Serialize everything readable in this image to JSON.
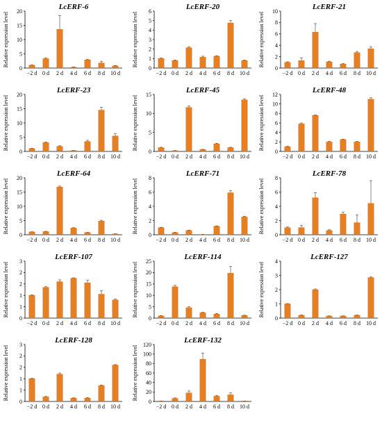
{
  "figure": {
    "ylabel": "Relative expression level",
    "categories": [
      "−2 d",
      "0 d",
      "2 d",
      "4 d",
      "6 d",
      "8 d",
      "10 d"
    ],
    "bar_color": "#e67e22"
  },
  "chart_data": [
    {
      "type": "bar",
      "title": "LcERF-6",
      "ylim": [
        0,
        20
      ],
      "yticks": [
        0,
        5,
        10,
        15,
        20
      ],
      "values": [
        1.0,
        3.3,
        13.6,
        0.3,
        2.9,
        1.8,
        0.8
      ],
      "errors": [
        0.1,
        0.3,
        4.8,
        0.1,
        0.2,
        0.6,
        0.1
      ]
    },
    {
      "type": "bar",
      "title": "LcERF-20",
      "ylim": [
        0,
        6
      ],
      "yticks": [
        0,
        1,
        2,
        3,
        4,
        5,
        6
      ],
      "values": [
        1.0,
        0.8,
        2.15,
        1.15,
        1.25,
        4.75,
        0.8
      ],
      "errors": [
        0.05,
        0.05,
        0.1,
        0.1,
        0.05,
        0.25,
        0.05
      ]
    },
    {
      "type": "bar",
      "title": "LcERF-21",
      "ylim": [
        0,
        10
      ],
      "yticks": [
        0,
        2,
        4,
        6,
        8,
        10
      ],
      "values": [
        1.0,
        1.3,
        6.3,
        1.1,
        0.7,
        2.7,
        3.4
      ],
      "errors": [
        0.1,
        0.5,
        1.5,
        0.1,
        0.1,
        0.2,
        0.3
      ]
    },
    {
      "type": "bar",
      "title": "LcERF-23",
      "ylim": [
        0,
        20
      ],
      "yticks": [
        0,
        5,
        10,
        15,
        20
      ],
      "values": [
        1.0,
        3.1,
        1.8,
        0.3,
        3.5,
        14.5,
        5.4
      ],
      "errors": [
        0.1,
        0.2,
        0.2,
        0.05,
        0.4,
        1.0,
        0.9
      ]
    },
    {
      "type": "bar",
      "title": "LcERF-45",
      "ylim": [
        0,
        15
      ],
      "yticks": [
        0,
        5,
        10,
        15
      ],
      "values": [
        1.0,
        0.2,
        11.6,
        0.5,
        2.0,
        1.0,
        13.6
      ],
      "errors": [
        0.1,
        0.05,
        0.4,
        0.05,
        0.1,
        0.1,
        0.3
      ]
    },
    {
      "type": "bar",
      "title": "LcERF-48",
      "ylim": [
        0,
        12
      ],
      "yticks": [
        0,
        2,
        4,
        6,
        8,
        10,
        12
      ],
      "values": [
        1.0,
        5.8,
        7.6,
        2.0,
        2.5,
        2.0,
        11.0
      ],
      "errors": [
        0.1,
        0.2,
        0.1,
        0.1,
        0.1,
        0.1,
        0.3
      ]
    },
    {
      "type": "bar",
      "title": "LcERF-64",
      "ylim": [
        0,
        20
      ],
      "yticks": [
        0,
        5,
        10,
        15,
        20
      ],
      "values": [
        1.0,
        1.1,
        16.8,
        2.4,
        0.8,
        4.8,
        0.3
      ],
      "errors": [
        0.05,
        0.1,
        0.3,
        0.1,
        0.05,
        0.3,
        0.05
      ]
    },
    {
      "type": "bar",
      "title": "LcERF-71",
      "ylim": [
        0,
        8
      ],
      "yticks": [
        0,
        2,
        4,
        6,
        8
      ],
      "values": [
        1.0,
        0.3,
        0.6,
        0.05,
        1.2,
        5.9,
        2.5
      ],
      "errors": [
        0.05,
        0.05,
        0.05,
        0.02,
        0.05,
        0.3,
        0.1
      ]
    },
    {
      "type": "bar",
      "title": "LcERF-78",
      "ylim": [
        0,
        8
      ],
      "yticks": [
        0,
        2,
        4,
        6,
        8
      ],
      "values": [
        1.0,
        1.0,
        5.2,
        0.6,
        2.9,
        1.7,
        4.4
      ],
      "errors": [
        0.1,
        0.3,
        0.7,
        0.1,
        0.3,
        1.1,
        3.2
      ]
    },
    {
      "type": "bar",
      "title": "LcERF-107",
      "ylim": [
        0,
        2.5
      ],
      "yticks": [
        0,
        0.5,
        1,
        1.5,
        2,
        2.5
      ],
      "ytick_labels": [
        "0",
        "1",
        "1",
        "2",
        "2",
        "3"
      ],
      "values": [
        1.0,
        1.35,
        1.6,
        1.75,
        1.55,
        1.05,
        0.8
      ],
      "errors": [
        0.02,
        0.03,
        0.08,
        0.02,
        0.12,
        0.15,
        0.04
      ]
    },
    {
      "type": "bar",
      "title": "LcERF-114",
      "ylim": [
        0,
        25
      ],
      "yticks": [
        0,
        5,
        10,
        15,
        20,
        25
      ],
      "values": [
        1.0,
        13.8,
        4.6,
        2.4,
        1.8,
        19.7,
        1.2
      ],
      "errors": [
        0.1,
        0.6,
        0.5,
        0.2,
        0.2,
        3.0,
        0.1
      ]
    },
    {
      "type": "bar",
      "title": "LcERF-127",
      "ylim": [
        0,
        4
      ],
      "yticks": [
        0,
        1,
        2,
        3,
        4
      ],
      "values": [
        1.0,
        0.2,
        2.0,
        0.15,
        0.15,
        0.2,
        2.85
      ],
      "errors": [
        0.02,
        0.02,
        0.05,
        0.01,
        0.01,
        0.02,
        0.04
      ]
    },
    {
      "type": "bar",
      "title": "LcERF-128",
      "ylim": [
        0,
        2.5
      ],
      "yticks": [
        0,
        0.5,
        1,
        1.5,
        2,
        2.5
      ],
      "ytick_labels": [
        "0",
        "1",
        "1",
        "2",
        "2",
        "3"
      ],
      "values": [
        1.0,
        0.2,
        1.2,
        0.15,
        0.15,
        0.7,
        1.6
      ],
      "errors": [
        0.02,
        0.02,
        0.05,
        0.01,
        0.02,
        0.02,
        0.02
      ]
    },
    {
      "type": "bar",
      "title": "LcERF-132",
      "ylim": [
        0,
        120
      ],
      "yticks": [
        0,
        20,
        40,
        60,
        80,
        100,
        120
      ],
      "values": [
        1.0,
        6.5,
        18.0,
        89.0,
        11.0,
        14.0,
        1.0
      ],
      "errors": [
        0.1,
        1.0,
        4.0,
        13.0,
        1.5,
        4.0,
        0.1
      ]
    }
  ]
}
